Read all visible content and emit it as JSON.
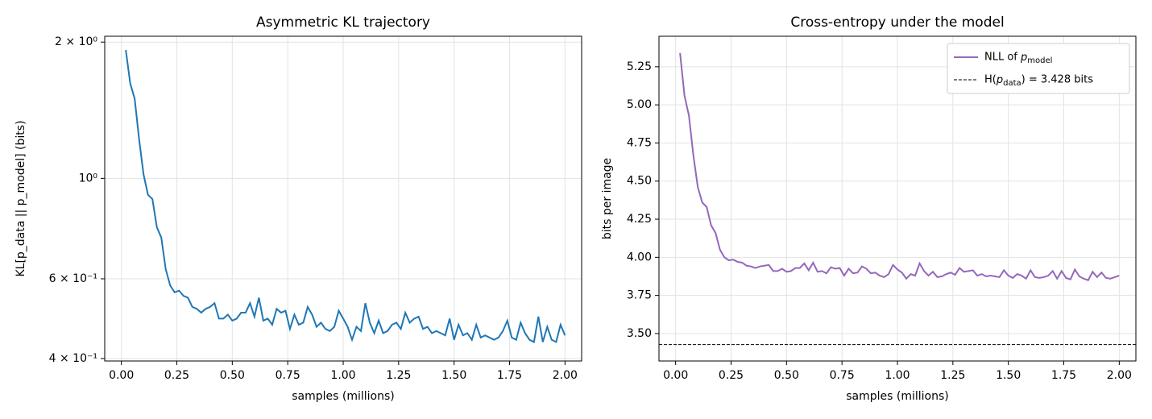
{
  "chart_data": [
    {
      "type": "line",
      "title": "Asymmetric KL trajectory",
      "xlabel": "samples (millions)",
      "ylabel": "KL[p_data || p_model]  (bits)",
      "yscale": "log",
      "grid": true,
      "xlim": [
        -0.075,
        2.075
      ],
      "ylim": [
        0.395,
        2.06
      ],
      "xticks": [
        {
          "value": 0,
          "label": "0.00"
        },
        0.25,
        {
          "value": 0.5,
          "label": "0.50"
        },
        0.75,
        {
          "value": 1,
          "label": "1.00"
        },
        1.25,
        {
          "value": 1.5,
          "label": "1.50"
        },
        1.75,
        {
          "value": 2,
          "label": "2.00"
        }
      ],
      "yticks": [
        {
          "value": 0.4,
          "label": "4 × 10⁻¹"
        },
        {
          "value": 0.6,
          "label": "6 × 10⁻¹"
        },
        {
          "value": 1,
          "label": "10⁰"
        },
        {
          "value": 2,
          "label": "2 × 10⁰"
        }
      ],
      "x": [
        0.02,
        0.04,
        0.06,
        0.08,
        0.1,
        0.12,
        0.14,
        0.16,
        0.18,
        0.2,
        0.22,
        0.24,
        0.26,
        0.28,
        0.3,
        0.32,
        0.34,
        0.36,
        0.38,
        0.4,
        0.42,
        0.44,
        0.46,
        0.48,
        0.5,
        0.52,
        0.54,
        0.56,
        0.58,
        0.6,
        0.62,
        0.64,
        0.66,
        0.68,
        0.7,
        0.72,
        0.74,
        0.76,
        0.78,
        0.8,
        0.82,
        0.84,
        0.86,
        0.88,
        0.9,
        0.92,
        0.94,
        0.96,
        0.98,
        1.0,
        1.02,
        1.04,
        1.06,
        1.08,
        1.1,
        1.12,
        1.14,
        1.16,
        1.18,
        1.2,
        1.22,
        1.24,
        1.26,
        1.28,
        1.3,
        1.32,
        1.34,
        1.36,
        1.38,
        1.4,
        1.42,
        1.44,
        1.46,
        1.48,
        1.5,
        1.52,
        1.54,
        1.56,
        1.58,
        1.6,
        1.62,
        1.64,
        1.66,
        1.68,
        1.7,
        1.72,
        1.74,
        1.76,
        1.78,
        1.8,
        1.82,
        1.84,
        1.86,
        1.88,
        1.9,
        1.92,
        1.94,
        1.96,
        1.98,
        2.0
      ],
      "series": [
        {
          "color": "#1f77b4",
          "values": [
            1.92,
            1.62,
            1.5,
            1.22,
            1.02,
            0.92,
            0.9,
            0.78,
            0.74,
            0.63,
            0.58,
            0.56,
            0.565,
            0.55,
            0.545,
            0.52,
            0.515,
            0.505,
            0.515,
            0.52,
            0.53,
            0.49,
            0.49,
            0.5,
            0.485,
            0.49,
            0.505,
            0.505,
            0.53,
            0.495,
            0.545,
            0.485,
            0.49,
            0.475,
            0.515,
            0.505,
            0.51,
            0.465,
            0.5,
            0.475,
            0.48,
            0.52,
            0.5,
            0.47,
            0.48,
            0.465,
            0.46,
            0.47,
            0.51,
            0.49,
            0.47,
            0.44,
            0.47,
            0.46,
            0.53,
            0.48,
            0.455,
            0.485,
            0.455,
            0.46,
            0.475,
            0.48,
            0.465,
            0.505,
            0.48,
            0.49,
            0.495,
            0.465,
            0.47,
            0.455,
            0.46,
            0.455,
            0.45,
            0.49,
            0.44,
            0.475,
            0.45,
            0.455,
            0.44,
            0.475,
            0.445,
            0.45,
            0.445,
            0.44,
            0.445,
            0.46,
            0.485,
            0.445,
            0.44,
            0.48,
            0.455,
            0.44,
            0.435,
            0.495,
            0.435,
            0.47,
            0.44,
            0.435,
            0.475,
            0.45
          ]
        }
      ]
    },
    {
      "type": "line",
      "title": "Cross-entropy under the model",
      "xlabel": "samples (millions)",
      "ylabel": "bits per image",
      "grid": true,
      "legend": "upper right",
      "xlim": [
        -0.075,
        2.075
      ],
      "ylim": [
        3.32,
        5.45
      ],
      "xticks": [
        {
          "value": 0,
          "label": "0.00"
        },
        0.25,
        {
          "value": 0.5,
          "label": "0.50"
        },
        0.75,
        {
          "value": 1,
          "label": "1.00"
        },
        1.25,
        {
          "value": 1.5,
          "label": "1.50"
        },
        1.75,
        {
          "value": 2,
          "label": "2.00"
        }
      ],
      "yticks": [
        {
          "value": 3.5,
          "label": "3.50"
        },
        3.75,
        {
          "value": 4,
          "label": "4.00"
        },
        4.25,
        {
          "value": 4.5,
          "label": "4.50"
        },
        4.75,
        {
          "value": 5,
          "label": "5.00"
        },
        5.25
      ],
      "x": [
        0.02,
        0.04,
        0.06,
        0.08,
        0.1,
        0.12,
        0.14,
        0.16,
        0.18,
        0.2,
        0.22,
        0.24,
        0.26,
        0.28,
        0.3,
        0.32,
        0.34,
        0.36,
        0.38,
        0.4,
        0.42,
        0.44,
        0.46,
        0.48,
        0.5,
        0.52,
        0.54,
        0.56,
        0.58,
        0.6,
        0.62,
        0.64,
        0.66,
        0.68,
        0.7,
        0.72,
        0.74,
        0.76,
        0.78,
        0.8,
        0.82,
        0.84,
        0.86,
        0.88,
        0.9,
        0.92,
        0.94,
        0.96,
        0.98,
        1.0,
        1.02,
        1.04,
        1.06,
        1.08,
        1.1,
        1.12,
        1.14,
        1.16,
        1.18,
        1.2,
        1.22,
        1.24,
        1.26,
        1.28,
        1.3,
        1.32,
        1.34,
        1.36,
        1.38,
        1.4,
        1.42,
        1.44,
        1.46,
        1.48,
        1.5,
        1.52,
        1.54,
        1.56,
        1.58,
        1.6,
        1.62,
        1.64,
        1.66,
        1.68,
        1.7,
        1.72,
        1.74,
        1.76,
        1.78,
        1.8,
        1.82,
        1.84,
        1.86,
        1.88,
        1.9,
        1.92,
        1.94,
        1.96,
        1.98,
        2.0
      ],
      "series": [
        {
          "name": "NLL of p_model",
          "color": "#9467bd",
          "values": [
            5.34,
            5.06,
            4.93,
            4.67,
            4.46,
            4.36,
            4.33,
            4.21,
            4.16,
            4.05,
            4.0,
            3.98,
            3.985,
            3.97,
            3.965,
            3.945,
            3.94,
            3.93,
            3.94,
            3.945,
            3.95,
            3.91,
            3.91,
            3.925,
            3.905,
            3.91,
            3.93,
            3.93,
            3.96,
            3.915,
            3.965,
            3.905,
            3.91,
            3.895,
            3.935,
            3.925,
            3.93,
            3.88,
            3.925,
            3.895,
            3.9,
            3.94,
            3.925,
            3.895,
            3.9,
            3.88,
            3.87,
            3.89,
            3.95,
            3.92,
            3.9,
            3.86,
            3.89,
            3.88,
            3.96,
            3.91,
            3.88,
            3.905,
            3.87,
            3.875,
            3.89,
            3.9,
            3.885,
            3.93,
            3.905,
            3.91,
            3.915,
            3.88,
            3.89,
            3.875,
            3.88,
            3.875,
            3.87,
            3.915,
            3.88,
            3.865,
            3.89,
            3.88,
            3.86,
            3.915,
            3.87,
            3.865,
            3.87,
            3.88,
            3.91,
            3.86,
            3.91,
            3.865,
            3.855,
            3.92,
            3.875,
            3.86,
            3.85,
            3.905,
            3.87,
            3.9,
            3.865,
            3.86,
            3.87,
            3.88
          ]
        }
      ],
      "hline": {
        "value": 3.428,
        "label": "H(p_data) = 3.428 bits",
        "color": "#000000"
      }
    }
  ]
}
